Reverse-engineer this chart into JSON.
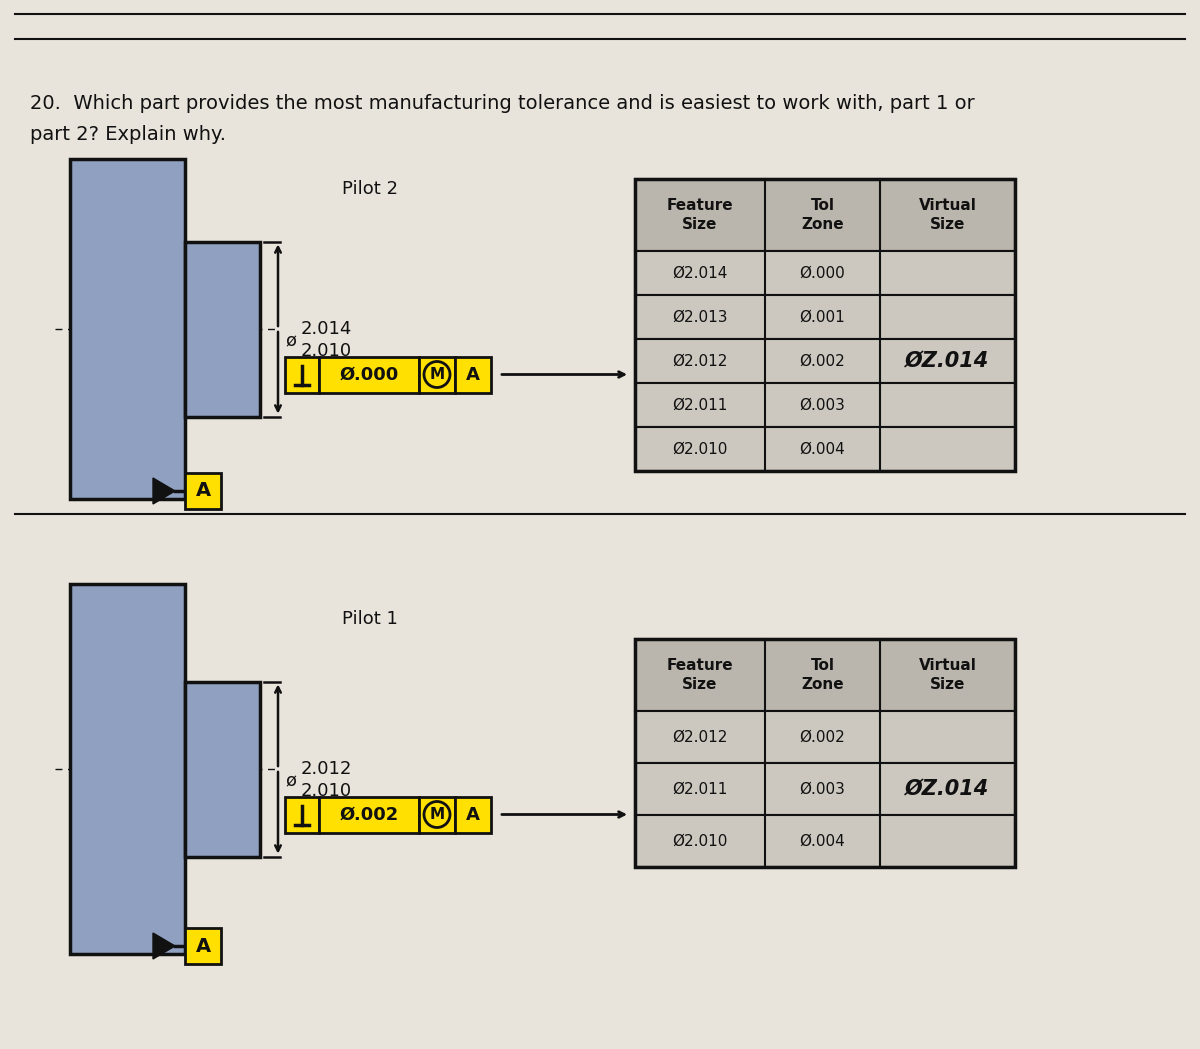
{
  "bg_color": "#e8e4dc",
  "pilot1": {
    "label": "Pilot 1",
    "dim_phi": "ø",
    "dim_upper": "2.012",
    "dim_lower": "2.010",
    "fcf_symbol": "⊥",
    "fcf_tol": "Ø.002",
    "fcf_modifier": "M",
    "fcf_datum": "A",
    "table_headers": [
      "Feature\nSize",
      "Tol\nZone",
      "Virtual\nSize"
    ],
    "table_rows": [
      [
        "Ø2.012",
        "Ø.002",
        ""
      ],
      [
        "Ø2.011",
        "Ø.003",
        "ØZ.014"
      ],
      [
        "Ø2.010",
        "Ø.004",
        ""
      ]
    ]
  },
  "pilot2": {
    "label": "Pilot 2",
    "dim_phi": "ø",
    "dim_upper": "2.014",
    "dim_lower": "2.010",
    "fcf_symbol": "⊥",
    "fcf_tol": "Ø.000",
    "fcf_modifier": "M",
    "fcf_datum": "A",
    "table_headers": [
      "Feature\nSize",
      "Tol\nZone",
      "Virtual\nSize"
    ],
    "table_rows": [
      [
        "Ø2.014",
        "Ø.000",
        ""
      ],
      [
        "Ø2.013",
        "Ø.001",
        ""
      ],
      [
        "Ø2.012",
        "Ø.002",
        "ØZ.014"
      ],
      [
        "Ø2.011",
        "Ø.003",
        ""
      ],
      [
        "Ø2.010",
        "Ø.004",
        ""
      ]
    ]
  },
  "question": "20.  Which part provides the most manufacturing tolerance and is easiest to work with, part 1 or\npart 2? Explain why.",
  "yellow": "#FFE000",
  "blue_gray": "#8fa0c0",
  "dark": "#111111",
  "table_bg": "#ccc8c0",
  "header_bg": "#bab6ae",
  "sep_color": "#333333"
}
